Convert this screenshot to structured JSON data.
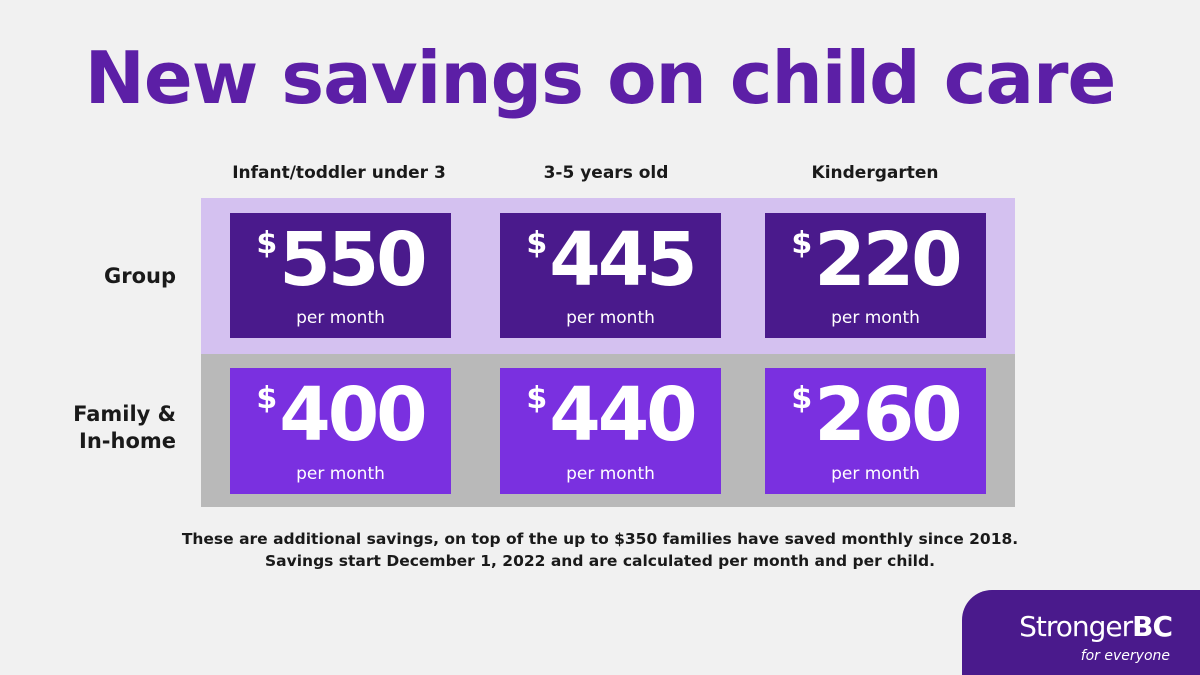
{
  "title": "New savings on child care",
  "columns": [
    "Infant/toddler under 3",
    "3-5 years old",
    "Kindergarten"
  ],
  "rows": [
    {
      "label": "Group",
      "amounts": [
        "550",
        "445",
        "220"
      ]
    },
    {
      "label_line1": "Family &",
      "label_line2": "In-home",
      "amounts": [
        "400",
        "440",
        "260"
      ]
    }
  ],
  "currency_symbol": "$",
  "unit": "per month",
  "notes": [
    "These are additional savings, on top of the up to $350 families have saved monthly since 2018.",
    "Savings start December 1, 2022 and are calculated per month and per child."
  ],
  "logo": {
    "brand_light": "Stronger",
    "brand_bold": "BC",
    "tagline": "for everyone"
  },
  "colors": {
    "title": "#5c1fa6",
    "group_band": "#d4c1f0",
    "family_band": "#b9b9b9",
    "group_card": "#4a1a8c",
    "family_card": "#7a30e0"
  }
}
